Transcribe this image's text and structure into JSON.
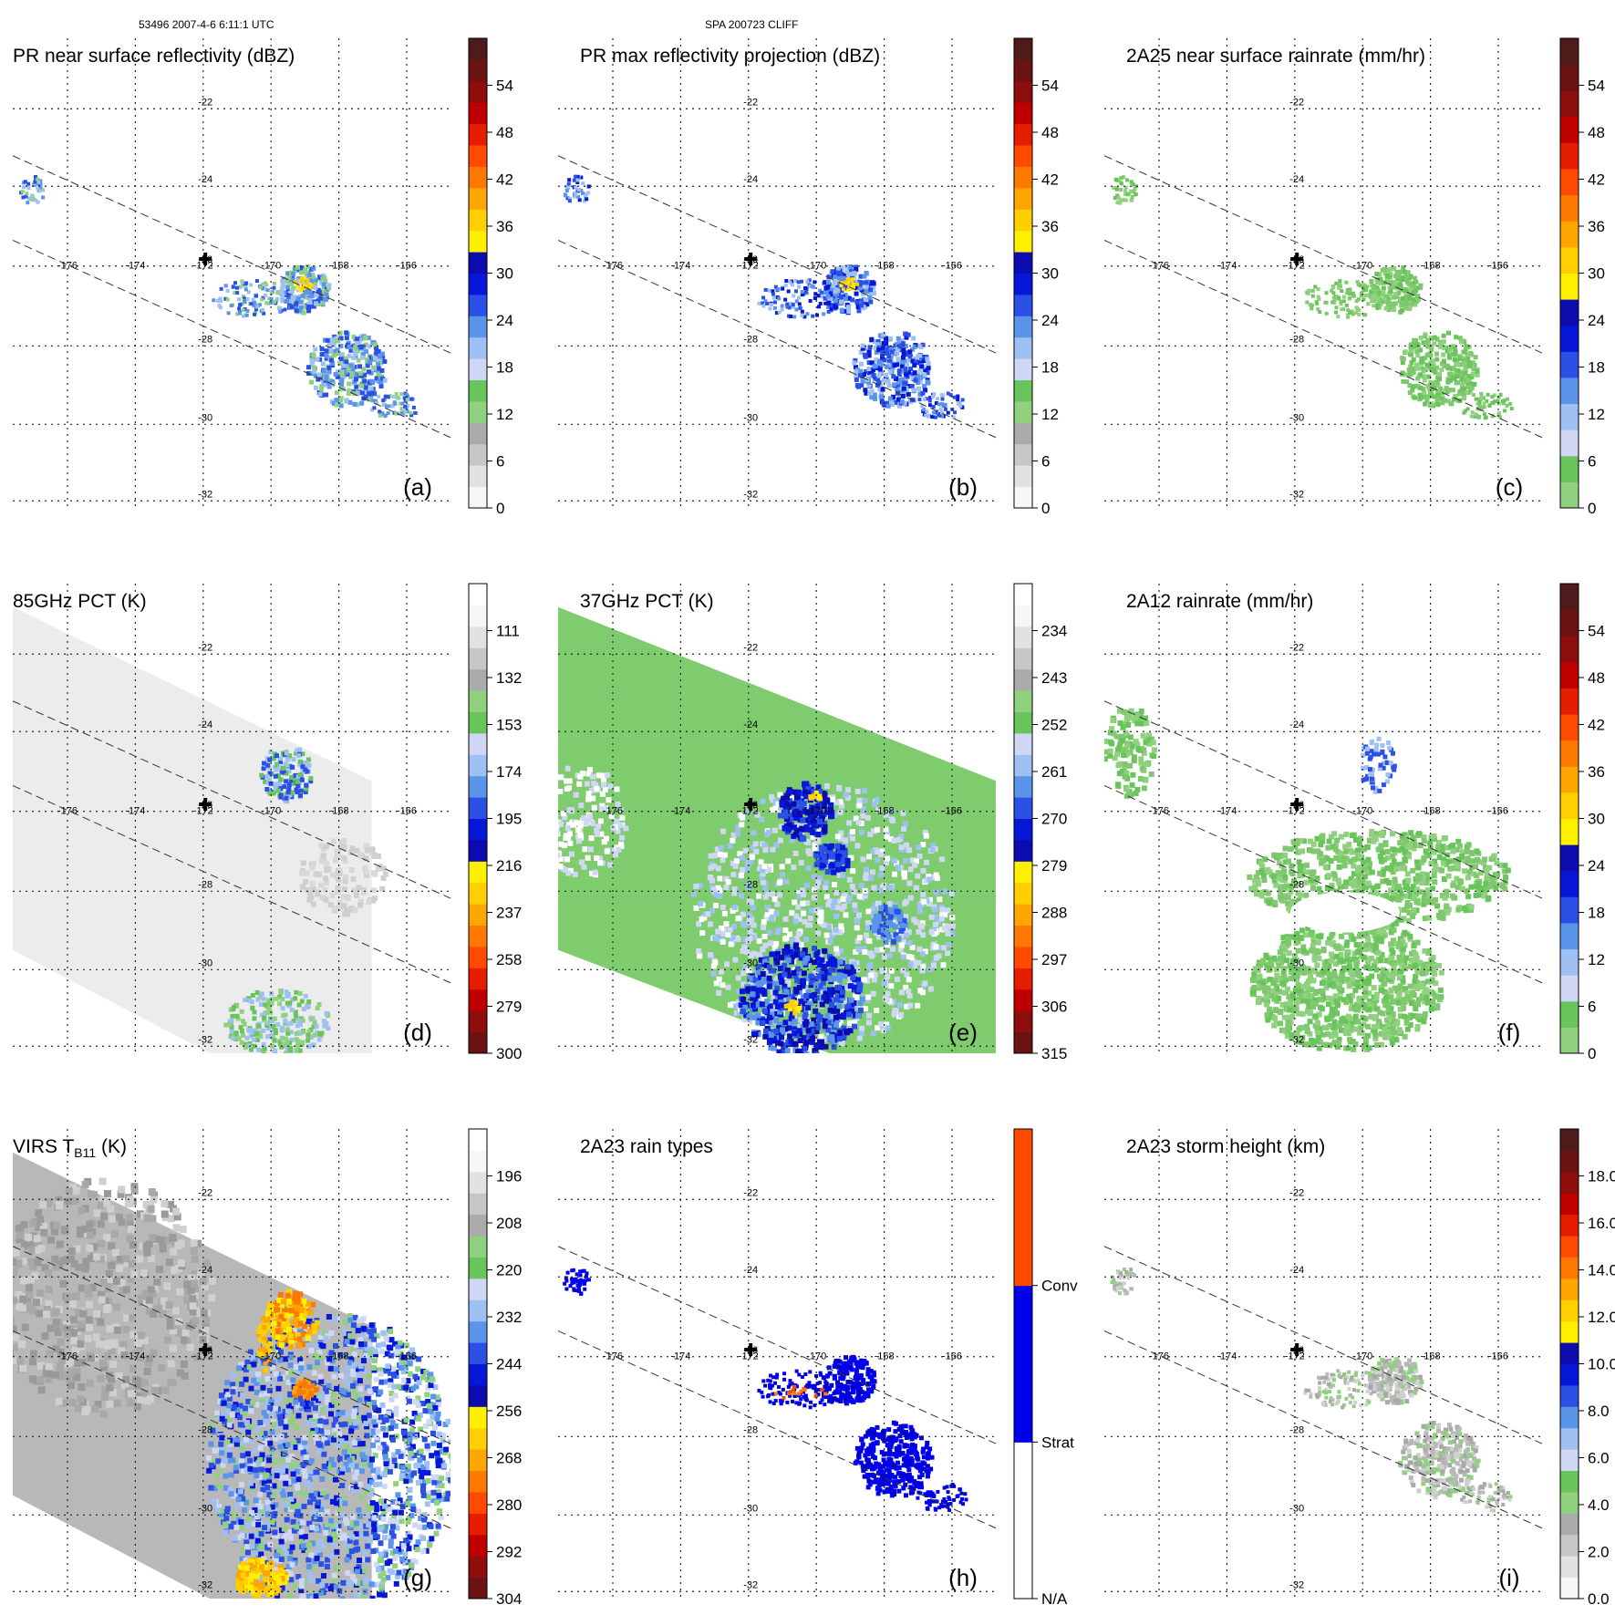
{
  "header": {
    "left": "53496 2007-4-6 6:11:1 UTC",
    "center": "SPA 200723 CLIFF"
  },
  "map": {
    "lat_labels": [
      "-22",
      "-24",
      "-26",
      "-28",
      "-30",
      "-32"
    ],
    "lon_labels": [
      "-176",
      "-174",
      "-172",
      "-170",
      "-168",
      "-166"
    ]
  },
  "palettes": {
    "standard": [
      "#f7f7f7",
      "#e2e2e2",
      "#c7c7c7",
      "#ababab",
      "#8fd17f",
      "#6ac45c",
      "#cfd7f5",
      "#9fc0f3",
      "#5b95ea",
      "#2b50e6",
      "#0717d8",
      "#0b0baf",
      "#fff000",
      "#ffcf00",
      "#ffa500",
      "#ff7800",
      "#ff4a00",
      "#e61e00",
      "#c00000",
      "#8e0d0d",
      "#6b1212",
      "#4f1a1a"
    ],
    "rain": [
      "#8fd17f",
      "#6ac45c",
      "#cfd7f5",
      "#9fc0f3",
      "#5b95ea",
      "#2b50e6",
      "#0717d8",
      "#0b0baf",
      "#fff000",
      "#ffcf00",
      "#ffa500",
      "#ff7800",
      "#ff4a00",
      "#e61e00",
      "#c00000",
      "#8e0d0d",
      "#6b1212",
      "#4f1a1a"
    ],
    "pct": [
      "#6b1212",
      "#8e0d0d",
      "#c00000",
      "#e61e00",
      "#ff4a00",
      "#ff7800",
      "#ffa500",
      "#ffcf00",
      "#fff000",
      "#0b0baf",
      "#0717d8",
      "#2b50e6",
      "#5b95ea",
      "#9fc0f3",
      "#cfd7f5",
      "#6ac45c",
      "#8fd17f",
      "#ababab",
      "#c7c7c7",
      "#e2e2e2",
      "#f7f7f7",
      "#ffffff"
    ],
    "raintype": [
      "#ffffff",
      "#ffffff",
      "#0000ee",
      "#0000ee",
      "#ff4a00",
      "#ff4a00"
    ]
  },
  "panels": [
    {
      "letter": "(a)",
      "title": "PR near surface reflectivity (dBZ)",
      "ticks": [
        "0",
        "6",
        "12",
        "18",
        "24",
        "30",
        "36",
        "42",
        "48",
        "54"
      ],
      "palette": "standard",
      "kind": "pr"
    },
    {
      "letter": "(b)",
      "title": "PR max reflectivity projection (dBZ)",
      "ticks": [
        "0",
        "6",
        "12",
        "18",
        "24",
        "30",
        "36",
        "42",
        "48",
        "54"
      ],
      "palette": "standard",
      "kind": "prmax"
    },
    {
      "letter": "(c)",
      "title": "2A25 near surface rainrate (mm/hr)",
      "ticks": [
        "0",
        "6",
        "12",
        "18",
        "24",
        "30",
        "36",
        "42",
        "48",
        "54"
      ],
      "palette": "rain",
      "kind": "rain"
    },
    {
      "letter": "(d)",
      "title": "85GHz PCT (K)",
      "ticks": [
        "300",
        "279",
        "258",
        "237",
        "216",
        "195",
        "174",
        "153",
        "132",
        "111"
      ],
      "palette": "pct",
      "kind": "pct85"
    },
    {
      "letter": "(e)",
      "title": "37GHz PCT (K)",
      "ticks": [
        "315",
        "306",
        "297",
        "288",
        "279",
        "270",
        "261",
        "252",
        "243",
        "234"
      ],
      "palette": "pct",
      "kind": "pct37"
    },
    {
      "letter": "(f)",
      "title": "2A12 rainrate (mm/hr)",
      "ticks": [
        "0",
        "6",
        "12",
        "18",
        "24",
        "30",
        "36",
        "42",
        "48",
        "54"
      ],
      "palette": "rain",
      "kind": "tmi"
    },
    {
      "letter": "(g)",
      "title_pre": "VIRS T",
      "title_sub": "B11",
      "title_post": " (K)",
      "ticks": [
        "304",
        "292",
        "280",
        "268",
        "256",
        "244",
        "232",
        "220",
        "208",
        "196"
      ],
      "palette": "pct",
      "kind": "virs"
    },
    {
      "letter": "(h)",
      "title": "2A23 rain types",
      "ticks": [
        "N/A",
        "Strat",
        "Conv"
      ],
      "palette": "raintype",
      "kind": "raintype"
    },
    {
      "letter": "(i)",
      "title": "2A23 storm height (km)",
      "ticks": [
        "0.0",
        "2.0",
        "4.0",
        "6.0",
        "8.0",
        "10.0",
        "12.0",
        "14.0",
        "16.0",
        "18.0"
      ],
      "palette": "standard",
      "kind": "height"
    }
  ]
}
